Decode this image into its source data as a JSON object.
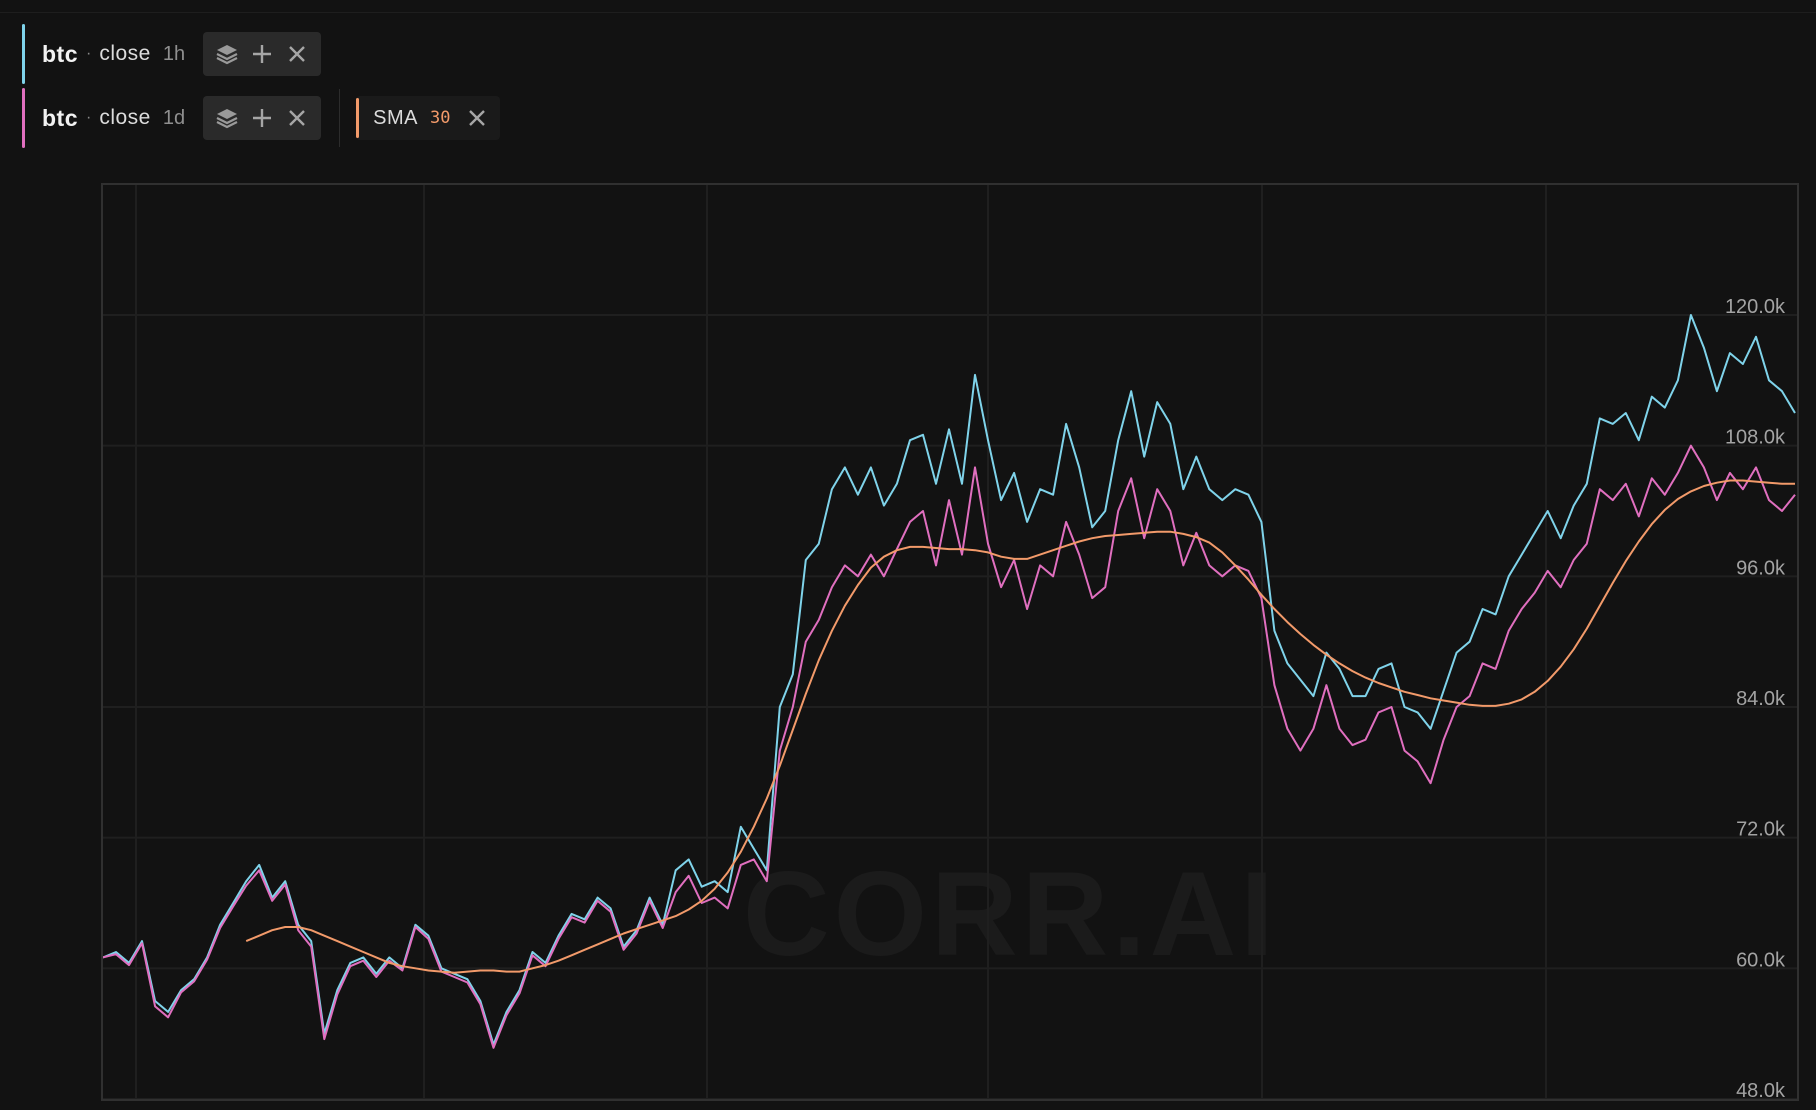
{
  "series_rows": [
    {
      "symbol": "btc",
      "separator": "·",
      "field": "close",
      "interval": "1h",
      "color": "#7fd3ea",
      "tools": [
        "layers-icon",
        "plus-icon",
        "close-icon"
      ]
    },
    {
      "symbol": "btc",
      "separator": "·",
      "field": "close",
      "interval": "1d",
      "color": "#e06fbf",
      "tools": [
        "layers-icon",
        "plus-icon",
        "close-icon"
      ],
      "indicator": {
        "name": "SMA",
        "param": "30",
        "color": "#f29a6a"
      }
    }
  ],
  "watermark": "CORR.AI",
  "chart_data": {
    "type": "line",
    "y_ticks": [
      {
        "label": "120.0k",
        "value": 120000
      },
      {
        "label": "108.0k",
        "value": 108000
      },
      {
        "label": "96.0k",
        "value": 96000
      },
      {
        "label": "84.0k",
        "value": 84000
      },
      {
        "label": "72.0k",
        "value": 72000
      },
      {
        "label": "60.0k",
        "value": 60000
      },
      {
        "label": "48.0k",
        "value": 48000
      }
    ],
    "ylim": [
      48000,
      130000
    ],
    "grid": true,
    "series": [
      {
        "color": "#7fd3ea",
        "values": [
          61000,
          61500,
          60500,
          62500,
          57000,
          56000,
          58000,
          59000,
          61000,
          64000,
          66000,
          68000,
          69500,
          66500,
          68000,
          64000,
          62500,
          54000,
          58000,
          60500,
          61000,
          59500,
          61000,
          60000,
          64000,
          63000,
          60000,
          59500,
          59000,
          57000,
          53000,
          56000,
          58000,
          61500,
          60500,
          63000,
          65000,
          64500,
          66500,
          65500,
          62000,
          63500,
          66500,
          64000,
          69000,
          70000,
          67500,
          68000,
          67000,
          73000,
          71000,
          69000,
          84000,
          87000,
          97500,
          99000,
          104000,
          106000,
          103500,
          106000,
          102500,
          104500,
          108500,
          109000,
          104500,
          109500,
          104500,
          114500,
          108500,
          103000,
          105500,
          101000,
          104000,
          103500,
          110000,
          106000,
          100500,
          102000,
          108500,
          113000,
          107000,
          112000,
          110000,
          104000,
          107000,
          104000,
          103000,
          104000,
          103500,
          101000,
          91000,
          88000,
          86500,
          85000,
          89000,
          87500,
          85000,
          85000,
          87500,
          88000,
          84000,
          83500,
          82000,
          85500,
          89000,
          90000,
          93000,
          92500,
          96000,
          98000,
          100000,
          102000,
          99500,
          102500,
          104500,
          110500,
          110000,
          111000,
          108500,
          112500,
          111500,
          114000,
          120000,
          117000,
          113000,
          116500,
          115500,
          118000,
          114000,
          113000,
          111000
        ]
      },
      {
        "color": "#e06fbf",
        "values": [
          61000,
          61300,
          60300,
          62300,
          56500,
          55500,
          57800,
          58800,
          60800,
          63700,
          65700,
          67600,
          69000,
          66200,
          67700,
          63500,
          62000,
          53500,
          57600,
          60200,
          60700,
          59200,
          60700,
          59800,
          63800,
          62700,
          59700,
          59200,
          58700,
          56700,
          52700,
          55700,
          57700,
          61200,
          60200,
          62700,
          64700,
          64200,
          66200,
          65200,
          61700,
          63200,
          66200,
          63700,
          67000,
          68500,
          66000,
          66500,
          65500,
          69500,
          70000,
          68000,
          80000,
          84000,
          90000,
          92000,
          95000,
          97000,
          96000,
          98000,
          96000,
          98500,
          101000,
          102000,
          97000,
          103000,
          98000,
          106000,
          99000,
          95000,
          97500,
          93000,
          97000,
          96000,
          101000,
          98000,
          94000,
          95000,
          102000,
          105000,
          99500,
          104000,
          102000,
          97000,
          100000,
          97000,
          96000,
          97000,
          96500,
          94000,
          86000,
          82000,
          80000,
          82000,
          86000,
          82000,
          80500,
          81000,
          83500,
          84000,
          80000,
          79000,
          77000,
          81000,
          84000,
          85000,
          88000,
          87500,
          91000,
          93000,
          94500,
          96500,
          95000,
          97500,
          99000,
          104000,
          103000,
          104500,
          101500,
          105000,
          103500,
          105500,
          108000,
          106000,
          103000,
          105500,
          104000,
          106000,
          103000,
          102000,
          103500
        ]
      },
      {
        "name": "SMA",
        "color": "#f29a6a",
        "values": [
          null,
          null,
          null,
          null,
          null,
          null,
          null,
          null,
          null,
          null,
          null,
          62500,
          63000,
          63500,
          63800,
          63800,
          63500,
          63000,
          62500,
          62000,
          61500,
          61000,
          60500,
          60200,
          60000,
          59800,
          59700,
          59600,
          59700,
          59800,
          59800,
          59700,
          59700,
          60000,
          60300,
          60700,
          61200,
          61700,
          62200,
          62700,
          63200,
          63600,
          64000,
          64400,
          64800,
          65400,
          66200,
          67300,
          68800,
          70700,
          73000,
          75600,
          78600,
          81900,
          85200,
          88300,
          91000,
          93300,
          95200,
          96800,
          97800,
          98400,
          98700,
          98700,
          98600,
          98500,
          98500,
          98400,
          98200,
          97800,
          97600,
          97600,
          98000,
          98400,
          98800,
          99200,
          99500,
          99700,
          99800,
          99900,
          100000,
          100100,
          100100,
          99900,
          99600,
          99100,
          98200,
          97000,
          95700,
          94300,
          93000,
          91800,
          90700,
          89700,
          88800,
          88000,
          87300,
          86700,
          86200,
          85800,
          85400,
          85100,
          84800,
          84600,
          84400,
          84200,
          84100,
          84100,
          84300,
          84700,
          85400,
          86400,
          87700,
          89300,
          91200,
          93300,
          95400,
          97400,
          99200,
          100800,
          102100,
          103100,
          103800,
          104300,
          104600,
          104800,
          104800,
          104700,
          104600,
          104500,
          104500
        ]
      }
    ]
  }
}
